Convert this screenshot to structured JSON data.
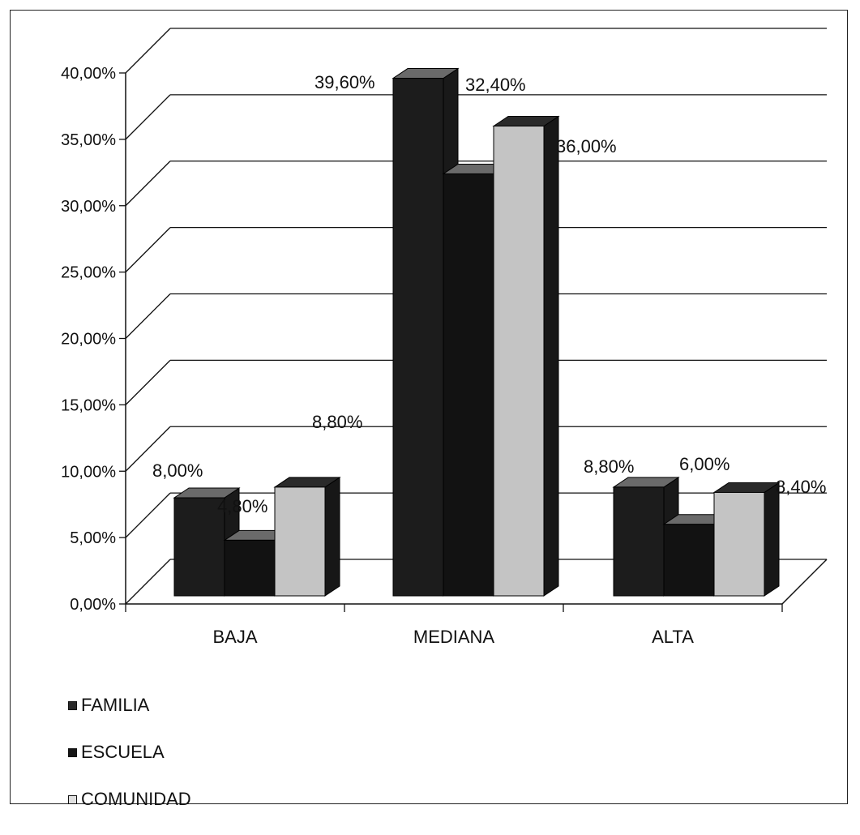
{
  "chart_data": {
    "type": "bar",
    "categories": [
      "BAJA",
      "MEDIANA",
      "ALTA"
    ],
    "series": [
      {
        "name": "FAMILIA",
        "values": [
          8.0,
          39.6,
          8.8
        ],
        "labels": [
          "8,00%",
          "39,60%",
          "8,80%"
        ],
        "color": "#1c1c1c"
      },
      {
        "name": "ESCUELA",
        "values": [
          4.8,
          32.4,
          6.0
        ],
        "labels": [
          "4,80%",
          "32,40%",
          "6,00%"
        ],
        "color": "#121212"
      },
      {
        "name": "COMUNIDAD",
        "values": [
          8.8,
          36.0,
          8.4
        ],
        "labels": [
          "8,80%",
          "36,00%",
          "8,40%"
        ],
        "color": "#c4c4c4"
      }
    ],
    "y_ticks": [
      "0,00%",
      "5,00%",
      "10,00%",
      "15,00%",
      "20,00%",
      "25,00%",
      "30,00%",
      "35,00%",
      "40,00%"
    ],
    "ylim": [
      0,
      40
    ],
    "grid": true,
    "legend_position": "bottom-left",
    "style": "3d-column"
  }
}
